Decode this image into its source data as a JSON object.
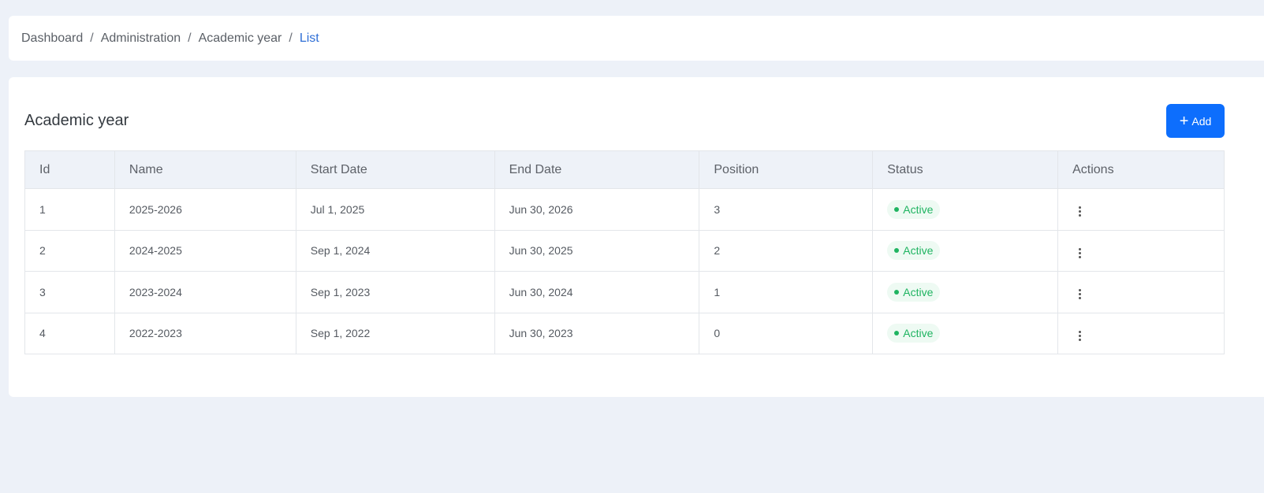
{
  "breadcrumb": [
    "Dashboard",
    "Administration",
    "Academic year",
    "List"
  ],
  "page": {
    "title": "Academic year",
    "add_label": "Add"
  },
  "table": {
    "columns": [
      "Id",
      "Name",
      "Start Date",
      "End Date",
      "Position",
      "Status",
      "Actions"
    ],
    "rows": [
      {
        "id": "1",
        "name": "2025-2026",
        "start": "Jul 1, 2025",
        "end": "Jun 30, 2026",
        "position": "3",
        "status": "Active"
      },
      {
        "id": "2",
        "name": "2024-2025",
        "start": "Sep 1, 2024",
        "end": "Jun 30, 2025",
        "position": "2",
        "status": "Active"
      },
      {
        "id": "3",
        "name": "2023-2024",
        "start": "Sep 1, 2023",
        "end": "Jun 30, 2024",
        "position": "1",
        "status": "Active"
      },
      {
        "id": "4",
        "name": "2022-2023",
        "start": "Sep 1, 2022",
        "end": "Jun 30, 2023",
        "position": "0",
        "status": "Active"
      }
    ]
  },
  "colors": {
    "accent": "#0d6efd",
    "active": "#1fb461",
    "crumb_current": "#2f6fd6"
  },
  "icons": {
    "add": "plus-icon",
    "actions": "kebab-menu-icon",
    "status": "dot-icon"
  }
}
